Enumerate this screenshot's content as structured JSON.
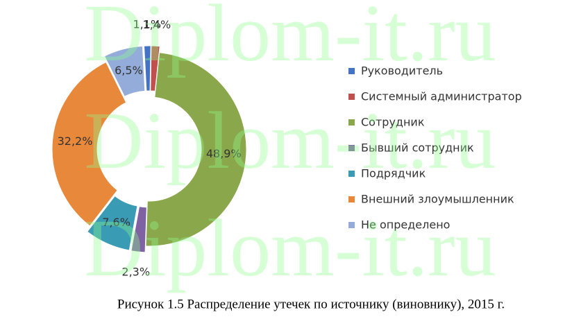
{
  "chart_data": {
    "type": "donut",
    "caption": "Рисунок 1.5 Распределение утечек по источнику (виновнику), 2015 г.",
    "watermark": "Diplom-it.ru",
    "categories": [
      "Руководитель",
      "Системный администратор",
      "Сотрудник",
      "Бывший сотрудник",
      "Подрядчик",
      "Внешний злоумышленник",
      "Не определено"
    ],
    "values": [
      1.1,
      1.4,
      48.9,
      2.3,
      7.6,
      32.2,
      6.5
    ],
    "value_labels": [
      "1,1%",
      "1,4%",
      "48,9%",
      "2,3%",
      "7,6%",
      "32,2%",
      "6,5%"
    ],
    "colors": [
      "#4472c4",
      "#c0504d",
      "#8aa84b",
      "#7f62a1",
      "#3a9bb5",
      "#e8883a",
      "#93acd9"
    ],
    "legend": "right"
  }
}
